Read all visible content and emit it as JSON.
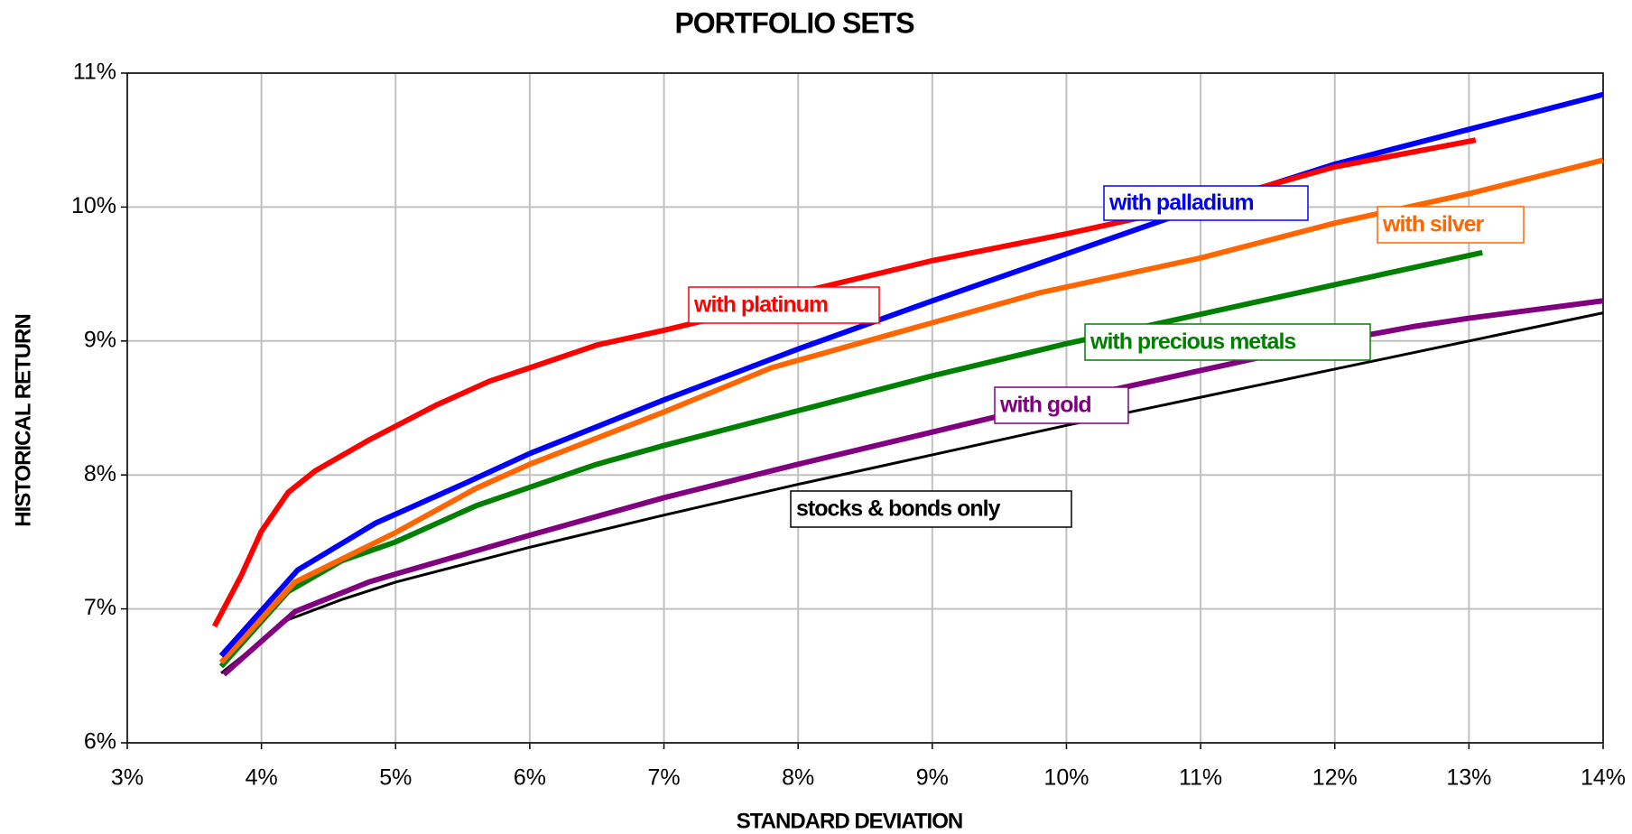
{
  "chart_data": {
    "type": "line",
    "title": "PORTFOLIO SETS",
    "x_label": "STANDARD DEVIATION",
    "y_label": "HISTORICAL RETURN",
    "xlim": [
      3,
      14
    ],
    "ylim": [
      6,
      11
    ],
    "grid": true,
    "xticks": [
      {
        "value": 3,
        "label": "3%"
      },
      {
        "value": 4,
        "label": "4%"
      },
      {
        "value": 5,
        "label": "5%"
      },
      {
        "value": 6,
        "label": "6%"
      },
      {
        "value": 7,
        "label": "7%"
      },
      {
        "value": 8,
        "label": "8%"
      },
      {
        "value": 9,
        "label": "9%"
      },
      {
        "value": 10,
        "label": "10%"
      },
      {
        "value": 11,
        "label": "11%"
      },
      {
        "value": 12,
        "label": "12%"
      },
      {
        "value": 13,
        "label": "13%"
      },
      {
        "value": 14,
        "label": "14%"
      }
    ],
    "yticks": [
      {
        "value": 6,
        "label": "6%"
      },
      {
        "value": 7,
        "label": "7%"
      },
      {
        "value": 8,
        "label": "8%"
      },
      {
        "value": 9,
        "label": "9%"
      },
      {
        "value": 10,
        "label": "10%"
      },
      {
        "value": 11,
        "label": "11%"
      }
    ],
    "series": [
      {
        "name": "stocks & bonds only",
        "color": "#000000",
        "width": 3,
        "x": [
          3.7,
          4.2,
          4.6,
          5,
          6,
          7,
          8,
          9,
          10,
          11,
          12,
          13,
          14
        ],
        "values": [
          6.52,
          6.92,
          7.07,
          7.2,
          7.46,
          7.7,
          7.93,
          8.15,
          8.37,
          8.58,
          8.79,
          9.0,
          9.21
        ]
      },
      {
        "name": "with gold",
        "color": "#800080",
        "width": 6,
        "x": [
          3.72,
          4.25,
          4.8,
          5,
          6,
          7,
          8,
          9,
          10,
          11,
          12,
          12.6,
          13,
          14
        ],
        "values": [
          6.51,
          6.98,
          7.2,
          7.26,
          7.55,
          7.83,
          8.08,
          8.32,
          8.56,
          8.78,
          9.0,
          9.11,
          9.17,
          9.3
        ]
      },
      {
        "name": "with precious metals",
        "color": "#008000",
        "width": 6,
        "x": [
          3.7,
          4.2,
          4.6,
          5,
          5.6,
          6.5,
          7,
          8,
          9,
          10,
          11,
          12,
          13.1
        ],
        "values": [
          6.57,
          7.13,
          7.36,
          7.5,
          7.77,
          8.08,
          8.22,
          8.48,
          8.74,
          8.98,
          9.2,
          9.42,
          9.66
        ]
      },
      {
        "name": "with silver",
        "color": "#ff6600",
        "width": 6,
        "x": [
          3.7,
          4.25,
          5,
          5.6,
          6,
          7,
          7.8,
          8.8,
          9.8,
          11,
          12,
          13,
          14
        ],
        "values": [
          6.6,
          7.2,
          7.57,
          7.9,
          8.08,
          8.47,
          8.8,
          9.08,
          9.36,
          9.62,
          9.88,
          10.1,
          10.35
        ]
      },
      {
        "name": "with palladium",
        "color": "#0000ff",
        "width": 6,
        "x": [
          3.7,
          4.27,
          4.85,
          5.5,
          6,
          7,
          8,
          9,
          10,
          11,
          12,
          13,
          14
        ],
        "values": [
          6.65,
          7.29,
          7.64,
          7.93,
          8.16,
          8.56,
          8.94,
          9.3,
          9.65,
          10.0,
          10.32,
          10.58,
          10.84
        ]
      },
      {
        "name": "with platinum",
        "color": "#ff0000",
        "width": 6,
        "x": [
          3.65,
          3.85,
          4,
          4.2,
          4.4,
          4.8,
          5.3,
          5.7,
          6,
          6.5,
          7,
          7.5,
          8,
          9,
          10,
          11,
          12,
          13.05
        ],
        "values": [
          6.87,
          7.25,
          7.58,
          7.87,
          8.03,
          8.26,
          8.52,
          8.7,
          8.8,
          8.97,
          9.08,
          9.2,
          9.36,
          9.6,
          9.8,
          10.02,
          10.3,
          10.5
        ]
      }
    ]
  }
}
